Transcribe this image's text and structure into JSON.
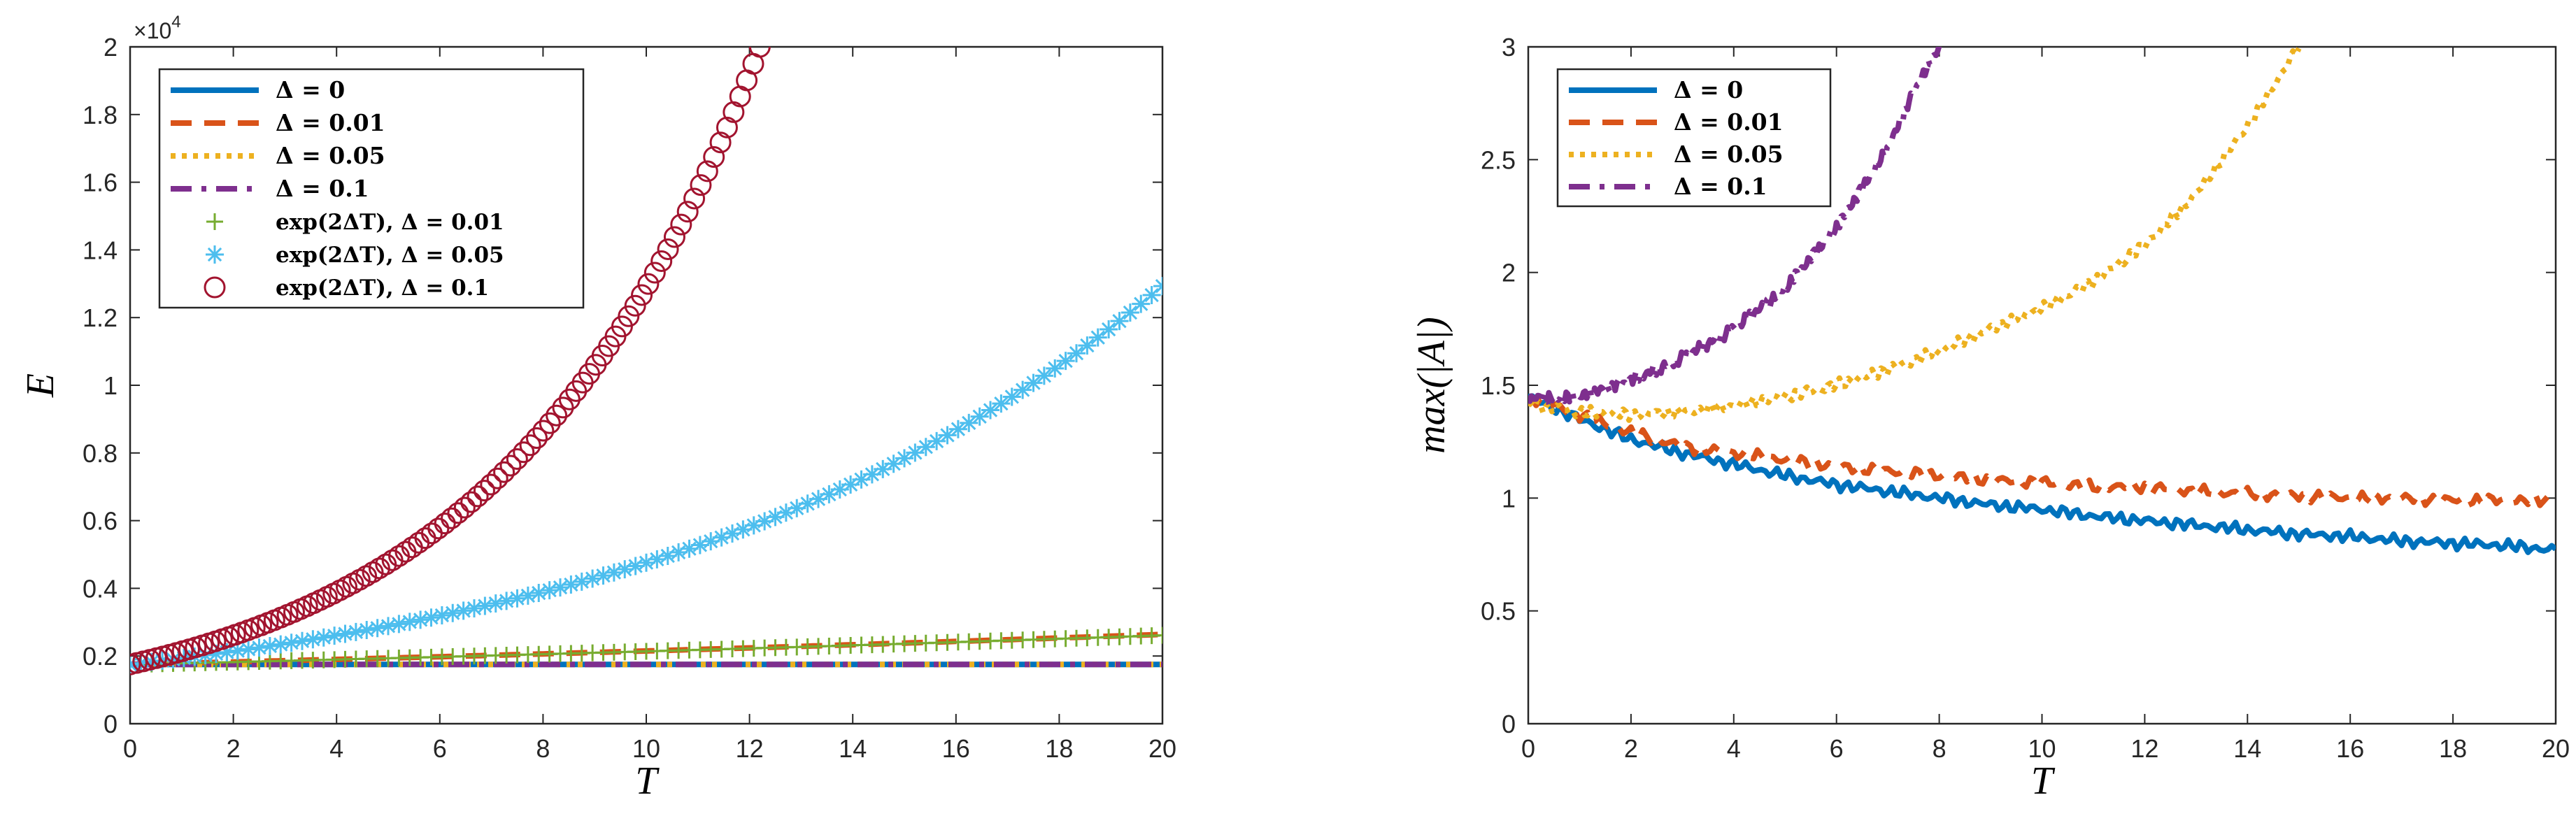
{
  "chart_data": [
    {
      "type": "line",
      "xlabel": "T",
      "ylabel": "E",
      "xlim": [
        0,
        20
      ],
      "ylim": [
        0,
        20000
      ],
      "xticks": [
        0,
        2,
        4,
        6,
        8,
        10,
        12,
        14,
        16,
        18,
        20
      ],
      "xtick_labels": [
        "0",
        "2",
        "4",
        "6",
        "8",
        "10",
        "12",
        "14",
        "16",
        "18",
        "20"
      ],
      "yticks": [
        0,
        2000,
        4000,
        6000,
        8000,
        10000,
        12000,
        14000,
        16000,
        18000,
        20000
      ],
      "ytick_labels": [
        "0",
        "0.2",
        "0.4",
        "0.6",
        "0.8",
        "1",
        "1.2",
        "1.4",
        "1.6",
        "1.8",
        "2"
      ],
      "y_exponent": "×10^4",
      "legend_position": "top-left",
      "series": [
        {
          "name": "Δ = 0",
          "label_main": "Δ = 0",
          "style": "solid",
          "color": "#0072BD",
          "x": [
            0,
            20
          ],
          "y": [
            1750,
            1750
          ]
        },
        {
          "name": "Δ = 0.01",
          "label_main": "Δ = 0.01",
          "style": "dashed",
          "color": "#D95319",
          "x": [
            0,
            2,
            4,
            6,
            8,
            10,
            12,
            14,
            16,
            18,
            20
          ],
          "y": [
            1750,
            1824,
            1900,
            1979,
            2063,
            2149,
            2239,
            2333,
            2431,
            2533,
            2639
          ]
        },
        {
          "name": "Δ = 0.05",
          "label_main": "Δ = 0.05",
          "style": "dotted",
          "color": "#EDB120",
          "x": [
            0,
            20
          ],
          "y": [
            1750,
            1750
          ]
        },
        {
          "name": "Δ = 0.1",
          "label_main": "Δ = 0.1",
          "style": "dashdot",
          "color": "#7E2F8E",
          "x": [
            0,
            20
          ],
          "y": [
            1750,
            1750
          ]
        },
        {
          "name": "exp(2ΔT), Δ = 0.01",
          "label_main": "exp(2ΔT), Δ = 0.01",
          "style": "marker-plus",
          "color": "#77AC30",
          "x": [
            0,
            20
          ],
          "y": [
            1750,
            2611
          ]
        },
        {
          "name": "exp(2ΔT), Δ = 0.05",
          "label_main": "exp(2ΔT), Δ = 0.05",
          "style": "marker-asterisk",
          "color": "#4DBEEE",
          "x": [
            0,
            20
          ],
          "y": [
            1750,
            12931
          ]
        },
        {
          "name": "exp(2ΔT), Δ = 0.1",
          "label_main": "exp(2ΔT), Δ = 0.1",
          "style": "marker-circle",
          "color": "#A2142F",
          "x": [
            0,
            12.2
          ],
          "y": [
            1750,
            20000
          ]
        }
      ]
    },
    {
      "type": "line",
      "xlabel": "T",
      "ylabel": "max(|A|)",
      "xlim": [
        0,
        20
      ],
      "ylim": [
        0,
        3
      ],
      "xticks": [
        0,
        2,
        4,
        6,
        8,
        10,
        12,
        14,
        16,
        18,
        20
      ],
      "xtick_labels": [
        "0",
        "2",
        "4",
        "6",
        "8",
        "10",
        "12",
        "14",
        "16",
        "18",
        "20"
      ],
      "yticks": [
        0,
        0.5,
        1,
        1.5,
        2,
        2.5,
        3
      ],
      "ytick_labels": [
        "0",
        "0.5",
        "1",
        "1.5",
        "2",
        "2.5",
        "3"
      ],
      "legend_position": "top-left",
      "series": [
        {
          "name": "Δ = 0",
          "label_main": "Δ = 0",
          "style": "solid",
          "color": "#0072BD",
          "x": [
            0,
            1,
            2,
            3,
            4,
            5,
            6,
            7,
            8,
            9,
            10,
            11,
            12,
            13,
            14,
            15,
            16,
            17,
            18,
            19,
            20
          ],
          "y": [
            1.45,
            1.35,
            1.26,
            1.2,
            1.15,
            1.1,
            1.06,
            1.03,
            1.0,
            0.97,
            0.95,
            0.92,
            0.9,
            0.88,
            0.86,
            0.84,
            0.83,
            0.81,
            0.8,
            0.79,
            0.77
          ]
        },
        {
          "name": "Δ = 0.01",
          "label_main": "Δ = 0.01",
          "style": "dashed",
          "color": "#D95319",
          "x": [
            0,
            1,
            2,
            3,
            4,
            5,
            6,
            7,
            8,
            9,
            10,
            11,
            12,
            13,
            14,
            15,
            16,
            17,
            18,
            19,
            20
          ],
          "y": [
            1.45,
            1.37,
            1.29,
            1.23,
            1.2,
            1.17,
            1.14,
            1.12,
            1.1,
            1.08,
            1.07,
            1.05,
            1.05,
            1.03,
            1.02,
            1.01,
            1.0,
            1.0,
            0.99,
            0.99,
            0.99
          ]
        },
        {
          "name": "Δ = 0.05",
          "label_main": "Δ = 0.05",
          "style": "dotted",
          "color": "#EDB120",
          "x": [
            0,
            1,
            2,
            3,
            4,
            5,
            6,
            7,
            8,
            9,
            10,
            11,
            12,
            13,
            14,
            15
          ],
          "y": [
            1.42,
            1.38,
            1.37,
            1.38,
            1.41,
            1.45,
            1.5,
            1.57,
            1.65,
            1.75,
            1.84,
            1.96,
            2.12,
            2.35,
            2.65,
            3.0
          ]
        },
        {
          "name": "Δ = 0.1",
          "label_main": "Δ = 0.1",
          "style": "dashdot",
          "color": "#7E2F8E",
          "x": [
            0,
            1,
            2,
            3,
            4,
            5,
            6,
            7,
            7.5,
            8
          ],
          "y": [
            1.44,
            1.45,
            1.52,
            1.62,
            1.75,
            1.93,
            2.2,
            2.55,
            2.8,
            3.0
          ]
        }
      ]
    }
  ]
}
